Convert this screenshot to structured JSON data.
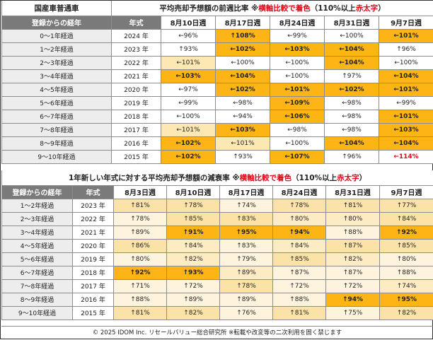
{
  "header": {
    "left_title": "国産車普通車",
    "title_main": "平均売却予想額の前週比率",
    "title_note_prefix": "※",
    "title_note_red1": "横軸比較で着色",
    "title_note_mid": "（110%以上",
    "title_note_red2": "赤太字",
    "title_note_suffix": "）"
  },
  "table1": {
    "col_label": "登録からの経年",
    "col_year": "年式",
    "weeks": [
      "8月10日週",
      "8月17日週",
      "8月24日週",
      "8月31日週",
      "9月7日週"
    ]
  },
  "section2": {
    "title_main": "1年新しい年式に対する平均売却予想額の減衰率",
    "title_note_prefix": "※",
    "title_note_red1": "横軸比較で着色",
    "title_note_mid": "（110%以上",
    "title_note_red2": "赤太字",
    "title_note_suffix": "）",
    "col_label": "登録からの経年",
    "col_year": "年式",
    "weeks": [
      "8月3日週",
      "8月10日週",
      "8月17日週",
      "8月24日週",
      "8月31日週",
      "9月7日週"
    ]
  },
  "footer": {
    "text": "© 2025 IDOM Inc. リセールバリュー総合研究所 ※転載や改変等の二次利用を固く禁じます"
  },
  "colors": {
    "highlight": "#fcb514",
    "light": "#fde8b4",
    "header_gray": "#7a7a7a",
    "red": "#e60012"
  },
  "chart_data": [
    {
      "type": "table",
      "title": "平均売却予想額の前週比率",
      "columns": [
        "8月10日週",
        "8月17日週",
        "8月24日週",
        "8月31日週",
        "9月7日週"
      ],
      "rows": [
        {
          "label": "0～1年経過",
          "year": "2024 年",
          "cells": [
            {
              "text": "←96%",
              "style": "wh"
            },
            {
              "text": "↑108%",
              "style": "hl"
            },
            {
              "text": "←99%",
              "style": "wh"
            },
            {
              "text": "←100%",
              "style": "wh"
            },
            {
              "text": "←101%",
              "style": "hl"
            }
          ]
        },
        {
          "label": "1～2年経過",
          "year": "2023 年",
          "cells": [
            {
              "text": "↑93%",
              "style": "wh"
            },
            {
              "text": "←102%",
              "style": "hl"
            },
            {
              "text": "←103%",
              "style": "hl"
            },
            {
              "text": "←104%",
              "style": "hl"
            },
            {
              "text": "↑96%",
              "style": "wh"
            }
          ]
        },
        {
          "label": "2～3年経過",
          "year": "2022 年",
          "cells": [
            {
              "text": "←101%",
              "style": "lt"
            },
            {
              "text": "←100%",
              "style": "wh"
            },
            {
              "text": "←100%",
              "style": "wh"
            },
            {
              "text": "←104%",
              "style": "hl"
            },
            {
              "text": "←100%",
              "style": "wh"
            }
          ]
        },
        {
          "label": "3～4年経過",
          "year": "2021 年",
          "cells": [
            {
              "text": "←103%",
              "style": "hl"
            },
            {
              "text": "←104%",
              "style": "hl"
            },
            {
              "text": "←100%",
              "style": "wh"
            },
            {
              "text": "↑97%",
              "style": "wh"
            },
            {
              "text": "←104%",
              "style": "hl"
            }
          ]
        },
        {
          "label": "4～5年経過",
          "year": "2020 年",
          "cells": [
            {
              "text": "←97%",
              "style": "wh"
            },
            {
              "text": "←102%",
              "style": "hl"
            },
            {
              "text": "←101%",
              "style": "hl"
            },
            {
              "text": "←102%",
              "style": "hl"
            },
            {
              "text": "←101%",
              "style": "hl"
            }
          ]
        },
        {
          "label": "5～6年経過",
          "year": "2019 年",
          "cells": [
            {
              "text": "←99%",
              "style": "wh"
            },
            {
              "text": "←98%",
              "style": "wh"
            },
            {
              "text": "←109%",
              "style": "hl"
            },
            {
              "text": "←98%",
              "style": "wh"
            },
            {
              "text": "←99%",
              "style": "wh"
            }
          ]
        },
        {
          "label": "6～7年経過",
          "year": "2018 年",
          "cells": [
            {
              "text": "←100%",
              "style": "wh"
            },
            {
              "text": "←94%",
              "style": "wh"
            },
            {
              "text": "←106%",
              "style": "hl"
            },
            {
              "text": "←98%",
              "style": "wh"
            },
            {
              "text": "←101%",
              "style": "hl"
            }
          ]
        },
        {
          "label": "7～8年経過",
          "year": "2017 年",
          "cells": [
            {
              "text": "←101%",
              "style": "lt"
            },
            {
              "text": "←103%",
              "style": "hl"
            },
            {
              "text": "←98%",
              "style": "wh"
            },
            {
              "text": "←98%",
              "style": "wh"
            },
            {
              "text": "←103%",
              "style": "hl"
            }
          ]
        },
        {
          "label": "8～9年経過",
          "year": "2016 年",
          "cells": [
            {
              "text": "←102%",
              "style": "hl"
            },
            {
              "text": "←101%",
              "style": "lt"
            },
            {
              "text": "←100%",
              "style": "wh"
            },
            {
              "text": "←104%",
              "style": "hl"
            },
            {
              "text": "←104%",
              "style": "hl"
            }
          ]
        },
        {
          "label": "9～10年経過",
          "year": "2015 年",
          "cells": [
            {
              "text": "←102%",
              "style": "hl"
            },
            {
              "text": "↑93%",
              "style": "wh"
            },
            {
              "text": "←107%",
              "style": "hl"
            },
            {
              "text": "↑96%",
              "style": "wh"
            },
            {
              "text": "←114%",
              "style": "red"
            }
          ]
        }
      ]
    },
    {
      "type": "table",
      "title": "1年新しい年式に対する平均売却予想額の減衰率",
      "columns": [
        "8月3日週",
        "8月10日週",
        "8月17日週",
        "8月24日週",
        "8月31日週",
        "9月7日週"
      ],
      "rows": [
        {
          "label": "1～2年経過",
          "year": "2023 年",
          "cells": [
            {
              "text": "↑81%",
              "style": "b1"
            },
            {
              "text": "↑78%",
              "style": "b1"
            },
            {
              "text": "↑74%",
              "style": "b3"
            },
            {
              "text": "↑78%",
              "style": "b1"
            },
            {
              "text": "↑81%",
              "style": "b1"
            },
            {
              "text": "↑77%",
              "style": "b1"
            }
          ]
        },
        {
          "label": "2～3年経過",
          "year": "2022 年",
          "cells": [
            {
              "text": "↑78%",
              "style": "b3"
            },
            {
              "text": "↑85%",
              "style": "b1"
            },
            {
              "text": "↑83%",
              "style": "b1"
            },
            {
              "text": "↑80%",
              "style": "b2"
            },
            {
              "text": "↑80%",
              "style": "b2"
            },
            {
              "text": "↑84%",
              "style": "b1"
            }
          ]
        },
        {
          "label": "3～4年経過",
          "year": "2021 年",
          "cells": [
            {
              "text": "↑89%",
              "style": "b3"
            },
            {
              "text": "↑91%",
              "style": "hl"
            },
            {
              "text": "↑95%",
              "style": "hl"
            },
            {
              "text": "↑94%",
              "style": "hl"
            },
            {
              "text": "↑88%",
              "style": "b3"
            },
            {
              "text": "↑92%",
              "style": "hl"
            }
          ]
        },
        {
          "label": "4～5年経過",
          "year": "2020 年",
          "cells": [
            {
              "text": "↑86%",
              "style": "b1"
            },
            {
              "text": "↑84%",
              "style": "b2"
            },
            {
              "text": "↑83%",
              "style": "b3"
            },
            {
              "text": "↑84%",
              "style": "b2"
            },
            {
              "text": "↑87%",
              "style": "b1"
            },
            {
              "text": "↑85%",
              "style": "b1"
            }
          ]
        },
        {
          "label": "5～6年経過",
          "year": "2019 年",
          "cells": [
            {
              "text": "↑80%",
              "style": "b3"
            },
            {
              "text": "↑82%",
              "style": "b2"
            },
            {
              "text": "↑79%",
              "style": "b3"
            },
            {
              "text": "↑85%",
              "style": "b1"
            },
            {
              "text": "↑82%",
              "style": "b2"
            },
            {
              "text": "↑80%",
              "style": "b3"
            }
          ]
        },
        {
          "label": "6～7年経過",
          "year": "2018 年",
          "cells": [
            {
              "text": "↑92%",
              "style": "hl"
            },
            {
              "text": "↑93%",
              "style": "hl"
            },
            {
              "text": "↑89%",
              "style": "b2"
            },
            {
              "text": "↑87%",
              "style": "b3"
            },
            {
              "text": "↑87%",
              "style": "b3"
            },
            {
              "text": "↑88%",
              "style": "b3"
            }
          ]
        },
        {
          "label": "7～8年経過",
          "year": "2017 年",
          "cells": [
            {
              "text": "↑71%",
              "style": "b3"
            },
            {
              "text": "↑72%",
              "style": "b3"
            },
            {
              "text": "↑78%",
              "style": "b1"
            },
            {
              "text": "↑72%",
              "style": "b3"
            },
            {
              "text": "↑72%",
              "style": "b3"
            },
            {
              "text": "↑74%",
              "style": "b2"
            }
          ]
        },
        {
          "label": "8～9年経過",
          "year": "2016 年",
          "cells": [
            {
              "text": "↑88%",
              "style": "b3"
            },
            {
              "text": "↑89%",
              "style": "b3"
            },
            {
              "text": "↑89%",
              "style": "b3"
            },
            {
              "text": "↑88%",
              "style": "b3"
            },
            {
              "text": "↑94%",
              "style": "hl"
            },
            {
              "text": "↑95%",
              "style": "hl"
            }
          ]
        },
        {
          "label": "9～10年経過",
          "year": "2015 年",
          "cells": [
            {
              "text": "↑81%",
              "style": "b1"
            },
            {
              "text": "↑82%",
              "style": "b1"
            },
            {
              "text": "↑76%",
              "style": "b3"
            },
            {
              "text": "↑81%",
              "style": "b1"
            },
            {
              "text": "↑75%",
              "style": "b3"
            },
            {
              "text": "↑82%",
              "style": "b1"
            }
          ]
        }
      ]
    }
  ]
}
